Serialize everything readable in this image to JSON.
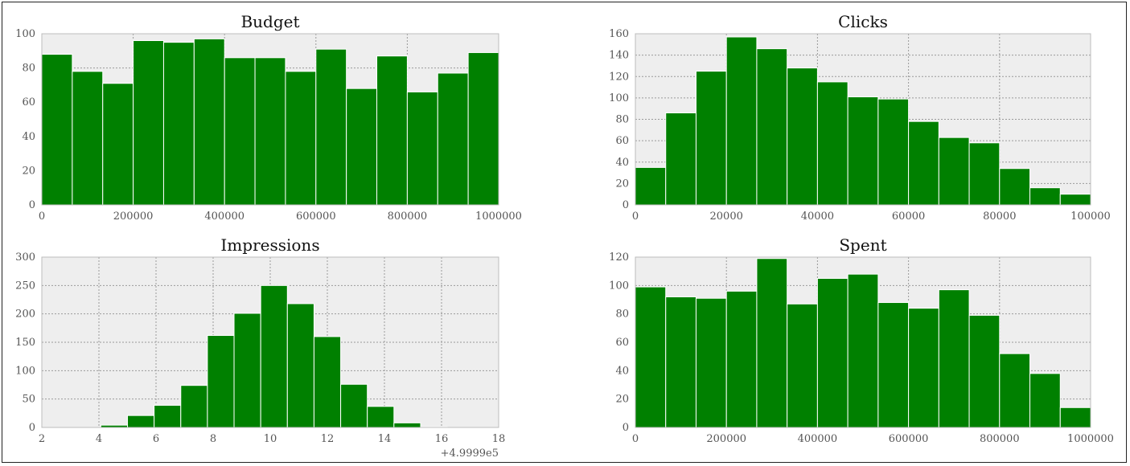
{
  "charts": [
    {
      "id": "budget",
      "chart_data": {
        "type": "bar",
        "title": "Budget",
        "xlabel": "",
        "ylabel": "",
        "xlim": [
          0,
          1000000
        ],
        "ylim": [
          0,
          100
        ],
        "bin_edges": [
          0,
          66667,
          133333,
          200000,
          266667,
          333333,
          400000,
          466667,
          533333,
          600000,
          666667,
          733333,
          800000,
          866667,
          933333,
          1000000
        ],
        "values": [
          88,
          78,
          71,
          96,
          95,
          97,
          86,
          86,
          78,
          91,
          68,
          87,
          66,
          77,
          89
        ],
        "x_ticks": [
          0,
          200000,
          400000,
          600000,
          800000,
          1000000
        ],
        "x_tick_labels": [
          "0",
          "200000",
          "400000",
          "600000",
          "800000",
          "1000000"
        ],
        "y_ticks": [
          0,
          20,
          40,
          60,
          80,
          100
        ],
        "y_tick_labels": [
          "0",
          "20",
          "40",
          "60",
          "80",
          "100"
        ],
        "grid": true
      }
    },
    {
      "id": "clicks",
      "chart_data": {
        "type": "bar",
        "title": "Clicks",
        "xlabel": "",
        "ylabel": "",
        "xlim": [
          0,
          100000
        ],
        "ylim": [
          0,
          160
        ],
        "bin_edges": [
          0,
          6667,
          13333,
          20000,
          26667,
          33333,
          40000,
          46667,
          53333,
          60000,
          66667,
          73333,
          80000,
          86667,
          93333,
          100000
        ],
        "values": [
          35,
          86,
          125,
          157,
          146,
          128,
          115,
          101,
          99,
          78,
          63,
          58,
          34,
          16,
          10
        ],
        "x_ticks": [
          0,
          20000,
          40000,
          60000,
          80000,
          100000
        ],
        "x_tick_labels": [
          "0",
          "20000",
          "40000",
          "60000",
          "80000",
          "100000"
        ],
        "y_ticks": [
          0,
          20,
          40,
          60,
          80,
          100,
          120,
          140,
          160
        ],
        "y_tick_labels": [
          "0",
          "20",
          "40",
          "60",
          "80",
          "100",
          "120",
          "140",
          "160"
        ],
        "grid": true
      }
    },
    {
      "id": "impressions",
      "chart_data": {
        "type": "bar",
        "title": "Impressions",
        "xlabel": "",
        "ylabel": "",
        "x_offset_label": "+4.9999e5",
        "xlim": [
          2,
          18
        ],
        "ylim": [
          0,
          300
        ],
        "bin_edges": [
          2.2,
          3.133,
          4.067,
          5.0,
          5.933,
          6.867,
          7.8,
          8.733,
          9.667,
          10.6,
          11.533,
          12.467,
          13.4,
          14.333,
          15.267,
          16.2
        ],
        "values": [
          0,
          0,
          4,
          21,
          39,
          74,
          162,
          201,
          250,
          218,
          160,
          76,
          37,
          8,
          1
        ],
        "x_ticks": [
          2,
          4,
          6,
          8,
          10,
          12,
          14,
          16,
          18
        ],
        "x_tick_labels": [
          "2",
          "4",
          "6",
          "8",
          "10",
          "12",
          "14",
          "16",
          "18"
        ],
        "y_ticks": [
          0,
          50,
          100,
          150,
          200,
          250,
          300
        ],
        "y_tick_labels": [
          "0",
          "50",
          "100",
          "150",
          "200",
          "250",
          "300"
        ],
        "grid": true
      }
    },
    {
      "id": "spent",
      "chart_data": {
        "type": "bar",
        "title": "Spent",
        "xlabel": "",
        "ylabel": "",
        "xlim": [
          0,
          1000000
        ],
        "ylim": [
          0,
          120
        ],
        "bin_edges": [
          0,
          66667,
          133333,
          200000,
          266667,
          333333,
          400000,
          466667,
          533333,
          600000,
          666667,
          733333,
          800000,
          866667,
          933333,
          1000000
        ],
        "values": [
          99,
          92,
          91,
          96,
          119,
          87,
          105,
          108,
          88,
          84,
          97,
          79,
          52,
          38,
          14
        ],
        "x_ticks": [
          0,
          200000,
          400000,
          600000,
          800000,
          1000000
        ],
        "x_tick_labels": [
          "0",
          "200000",
          "400000",
          "600000",
          "800000",
          "1000000"
        ],
        "y_ticks": [
          0,
          20,
          40,
          60,
          80,
          100,
          120
        ],
        "y_tick_labels": [
          "0",
          "20",
          "40",
          "60",
          "80",
          "100",
          "120"
        ],
        "grid": true
      }
    }
  ],
  "colors": {
    "bar_fill": "#008000",
    "bar_edge": "#ffffff",
    "axes_bg": "#eeeeee",
    "grid": "#9a9a9a",
    "spine": "#bcbcbc",
    "tick_text": "#555555",
    "title_text": "#111111"
  }
}
